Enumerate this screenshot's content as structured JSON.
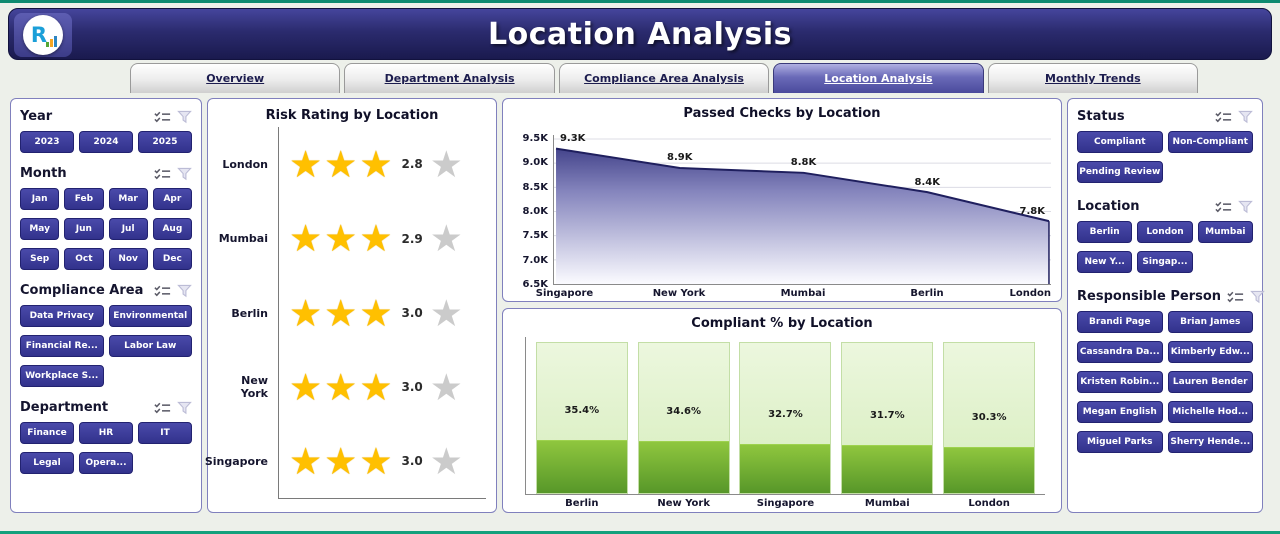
{
  "header": {
    "title": "Location Analysis",
    "logo_letter": "R"
  },
  "tabs": [
    {
      "label": "Overview",
      "active": false
    },
    {
      "label": "Department Analysis",
      "active": false
    },
    {
      "label": "Compliance Area Analysis",
      "active": false
    },
    {
      "label": "Location Analysis",
      "active": true
    },
    {
      "label": "Monthly Trends",
      "active": false
    }
  ],
  "icons": {
    "per_filter_group": [
      "multi-select-icon",
      "clear-filter-funnel-icon"
    ]
  },
  "left_filters": [
    {
      "title": "Year",
      "cols": 3,
      "items": [
        "2023",
        "2024",
        "2025"
      ]
    },
    {
      "title": "Month",
      "cols": 4,
      "items": [
        "Jan",
        "Feb",
        "Mar",
        "Apr",
        "May",
        "Jun",
        "Jul",
        "Aug",
        "Sep",
        "Oct",
        "Nov",
        "Dec"
      ]
    },
    {
      "title": "Compliance Area",
      "cols": 2,
      "items": [
        "Data Privacy",
        "Environmental",
        "Financial Re...",
        "Labor Law",
        "Workplace S..."
      ]
    },
    {
      "title": "Department",
      "cols": 3,
      "items": [
        "Finance",
        "HR",
        "IT",
        "Legal",
        "Opera..."
      ]
    }
  ],
  "right_filters": [
    {
      "title": "Status",
      "cols": 2,
      "items": [
        "Compliant",
        "Non-Compliant",
        "Pending Review"
      ]
    },
    {
      "title": "Location",
      "cols": 3,
      "items": [
        "Berlin",
        "London",
        "Mumbai",
        "New Y...",
        "Singap..."
      ]
    },
    {
      "title": "Responsible Person",
      "cols": 2,
      "items": [
        "Brandi Page",
        "Brian James",
        "Cassandra Da...",
        "Kimberly Edw...",
        "Kristen Robin...",
        "Lauren Bender",
        "Megan English",
        "Michelle Hod...",
        "Miguel Parks",
        "Sherry Hende..."
      ]
    }
  ],
  "chart_data": [
    {
      "type": "bar",
      "subtype": "star-rating",
      "title": "Risk Rating by Location",
      "categories": [
        "London",
        "Mumbai",
        "Berlin",
        "New York",
        "Singapore"
      ],
      "values": [
        2.8,
        2.9,
        3.0,
        3.0,
        3.0
      ],
      "labels": [
        "2.8",
        "2.9",
        "3.0",
        "3.0",
        "3.0"
      ],
      "max": 5,
      "star_color": "#FFC000",
      "empty_star_color": "#cbcbcb"
    },
    {
      "type": "area",
      "title": "Passed Checks by Location",
      "categories": [
        "Singapore",
        "New York",
        "Mumbai",
        "Berlin",
        "London"
      ],
      "values": [
        9300,
        8900,
        8800,
        8400,
        7800
      ],
      "labels": [
        "9.3K",
        "8.9K",
        "8.8K",
        "8.4K",
        "7.8K"
      ],
      "ylim": [
        6500,
        9500
      ],
      "yticks": [
        "9.5K",
        "9.0K",
        "8.5K",
        "8.0K",
        "7.5K",
        "7.0K",
        "6.5K"
      ],
      "grid": true,
      "legend": "none",
      "line_color": "#1f1f5e",
      "fill_top_color": "#30307c",
      "fill_bottom_color": "#fbfbff"
    },
    {
      "type": "bar",
      "title": "Compliant % by Location",
      "categories": [
        "Berlin",
        "New York",
        "Singapore",
        "Mumbai",
        "London"
      ],
      "values": [
        35.4,
        34.6,
        32.7,
        31.7,
        30.3
      ],
      "labels": [
        "35.4%",
        "34.6%",
        "32.7%",
        "31.7%",
        "30.3%"
      ],
      "ylim": [
        0,
        100
      ],
      "bar_color": "#6fb33a",
      "track_color": "#d6edbc"
    }
  ]
}
